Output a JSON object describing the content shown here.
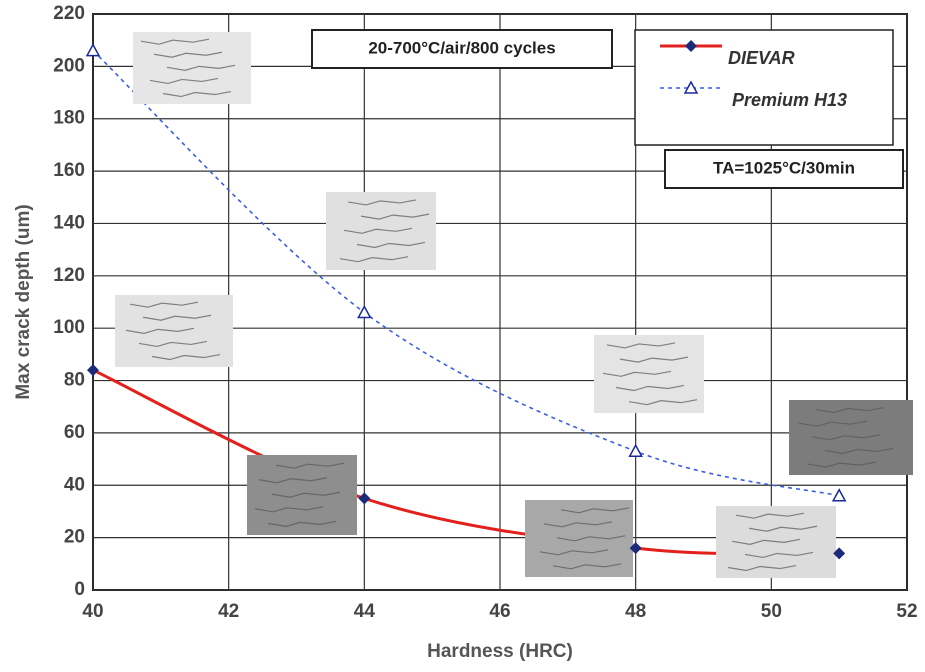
{
  "chart_data": {
    "type": "line",
    "xlabel": "Hardness (HRC)",
    "ylabel": "Max crack depth (um)",
    "annotations": [
      "20-700°C/air/800 cycles",
      "TA=1025°C/30min"
    ],
    "xlim": [
      40,
      52
    ],
    "xticks": [
      40,
      42,
      44,
      46,
      48,
      50,
      52
    ],
    "ylim": [
      0,
      220
    ],
    "yticks": [
      0,
      20,
      40,
      60,
      80,
      100,
      120,
      140,
      160,
      180,
      200,
      220
    ],
    "grid": true,
    "legend": "upper right",
    "series": [
      {
        "name": "DIEVAR",
        "color": "#e3201b",
        "marker": "diamond",
        "marker_color": "#1b2a7a",
        "dash": false,
        "x": [
          40,
          44,
          48,
          51
        ],
        "values": [
          84,
          35,
          16,
          14
        ]
      },
      {
        "name": "Premium H13",
        "color": "#3a5fe0",
        "marker": "triangle",
        "marker_color": "#1b2a9a",
        "dash": true,
        "x": [
          40,
          44,
          48,
          51
        ],
        "values": [
          206,
          106,
          53,
          36
        ]
      }
    ]
  }
}
